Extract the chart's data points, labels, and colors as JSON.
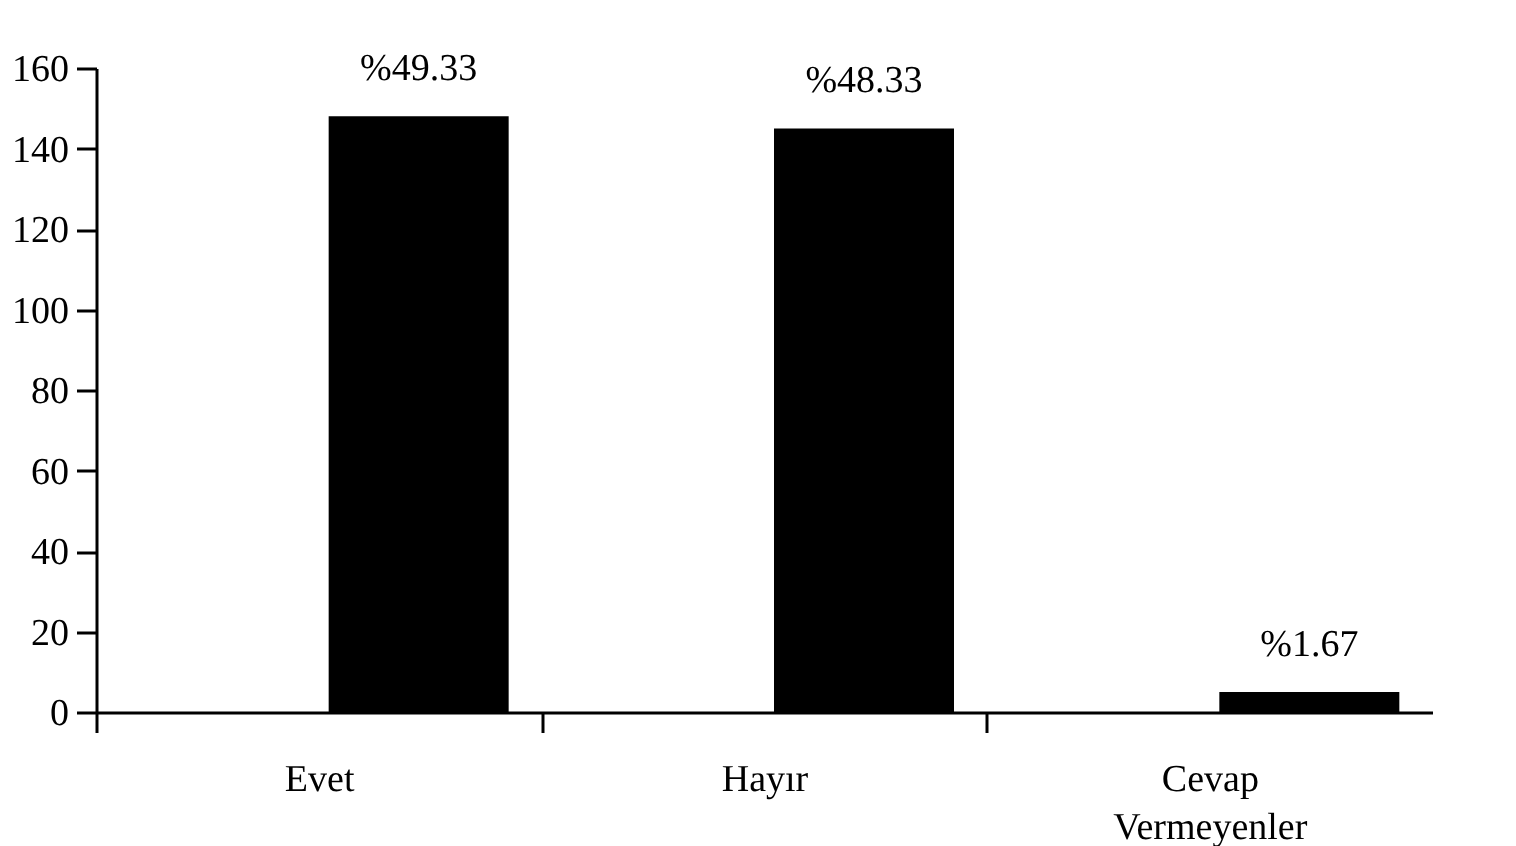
{
  "chart_data": {
    "type": "bar",
    "categories": [
      "Evet",
      "Hayır",
      "Cevap Vermeyenler"
    ],
    "values": [
      148,
      145,
      5
    ],
    "color": "#000000",
    "annotations": [
      {
        "text": "%49.33",
        "x": "Evet",
        "y": 148
      },
      {
        "text": "%48.33",
        "x": "Hayır",
        "y": 145
      },
      {
        "text": "%1.67",
        "x": "Cevap Vermeyenler",
        "y": 5
      }
    ],
    "ylim": [
      0,
      160
    ],
    "yticks": [
      0,
      20,
      40,
      60,
      80,
      100,
      120,
      140,
      160
    ],
    "grid": false
  }
}
